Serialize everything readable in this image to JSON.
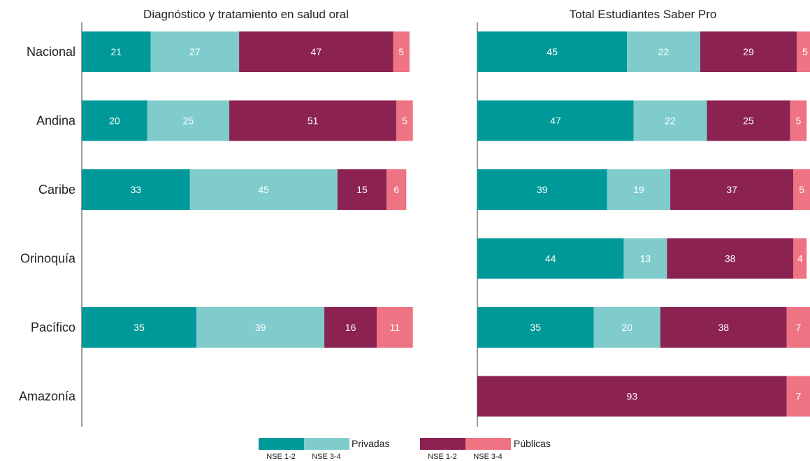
{
  "colors": {
    "privadas_nse12": "#009999",
    "privadas_nse34": "#80cccc",
    "publicas_nse12": "#8b2252",
    "publicas_nse34": "#ee7383"
  },
  "chart_data": [
    {
      "type": "bar",
      "orientation": "horizontal",
      "stacked": true,
      "title": "Diagnóstico y tratamiento en salud oral",
      "categories": [
        "Nacional",
        "Andina",
        "Caribe",
        "Orinoquía",
        "Pacífico",
        "Amazonía"
      ],
      "xlim": [
        0,
        100
      ],
      "series": [
        {
          "key": "privadas_nse12",
          "values": [
            21,
            20,
            33,
            null,
            35,
            null
          ]
        },
        {
          "key": "privadas_nse34",
          "values": [
            27,
            25,
            45,
            null,
            39,
            null
          ]
        },
        {
          "key": "publicas_nse12",
          "values": [
            47,
            51,
            15,
            null,
            16,
            null
          ]
        },
        {
          "key": "publicas_nse34",
          "values": [
            5,
            5,
            6,
            null,
            11,
            null
          ]
        }
      ]
    },
    {
      "type": "bar",
      "orientation": "horizontal",
      "stacked": true,
      "title": "Total Estudiantes Saber Pro",
      "categories": [
        "Nacional",
        "Andina",
        "Caribe",
        "Orinoquía",
        "Pacífico",
        "Amazonía"
      ],
      "xlim": [
        0,
        100
      ],
      "series": [
        {
          "key": "privadas_nse12",
          "values": [
            45,
            47,
            39,
            44,
            35,
            null
          ]
        },
        {
          "key": "privadas_nse34",
          "values": [
            22,
            22,
            19,
            13,
            20,
            null
          ]
        },
        {
          "key": "publicas_nse12",
          "values": [
            29,
            25,
            37,
            38,
            38,
            93
          ]
        },
        {
          "key": "publicas_nse34",
          "values": [
            5,
            5,
            5,
            4,
            7,
            7
          ]
        }
      ]
    }
  ],
  "legend": {
    "groups": [
      {
        "label": "Privadas",
        "items": [
          {
            "key": "privadas_nse12",
            "label": "NSE 1-2"
          },
          {
            "key": "privadas_nse34",
            "label": "NSE 3-4"
          }
        ]
      },
      {
        "label": "Públicas",
        "items": [
          {
            "key": "publicas_nse12",
            "label": "NSE 1-2"
          },
          {
            "key": "publicas_nse34",
            "label": "NSE 3-4"
          }
        ]
      }
    ]
  }
}
